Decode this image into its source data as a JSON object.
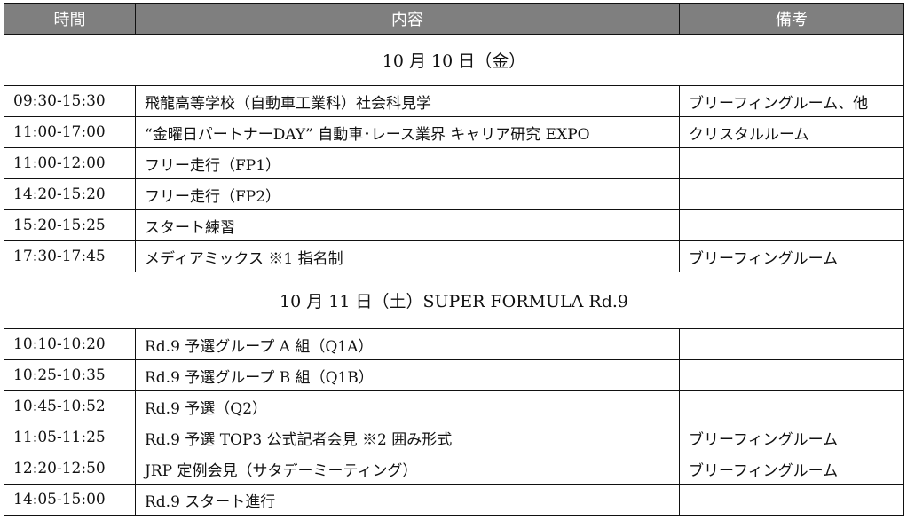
{
  "header": {
    "time": "時間",
    "content": "内容",
    "notes": "備考"
  },
  "sections": [
    {
      "date": "10 月 10 日（金）",
      "rows": [
        {
          "time": "09:30-15:30",
          "content": "飛龍高等学校（自動車工業科）社会科見学",
          "notes": "ブリーフィングルーム、他"
        },
        {
          "time": "11:00-17:00",
          "content": "“金曜日パートナーDAY” 自動車･レース業界 キャリア研究 EXPO",
          "notes": "クリスタルルーム"
        },
        {
          "time": "11:00-12:00",
          "content": "フリー走行（FP1）",
          "notes": ""
        },
        {
          "time": "14:20-15:20",
          "content": "フリー走行（FP2）",
          "notes": ""
        },
        {
          "time": "15:20-15:25",
          "content": "スタート練習",
          "notes": ""
        },
        {
          "time": "17:30-17:45",
          "content": "メディアミックス ※1 指名制",
          "notes": "ブリーフィングルーム"
        }
      ]
    },
    {
      "date": "10 月 11 日（土）SUPER FORMULA Rd.9",
      "rows": [
        {
          "time": "10:10-10:20",
          "content": "Rd.9 予選グループ A 組（Q1A）",
          "notes": ""
        },
        {
          "time": "10:25-10:35",
          "content": "Rd.9 予選グループ B 組（Q1B）",
          "notes": ""
        },
        {
          "time": "10:45-10:52",
          "content": "Rd.9 予選（Q2）",
          "notes": ""
        },
        {
          "time": "11:05-11:25",
          "content": "Rd.9 予選 TOP3 公式記者会見 ※2 囲み形式",
          "notes": "ブリーフィングルーム"
        },
        {
          "time": "12:20-12:50",
          "content": "JRP 定例会見（サタデーミーティング）",
          "notes": "ブリーフィングルーム"
        },
        {
          "time": "14:05-15:00",
          "content": "Rd.9 スタート進行",
          "notes": ""
        }
      ]
    }
  ]
}
